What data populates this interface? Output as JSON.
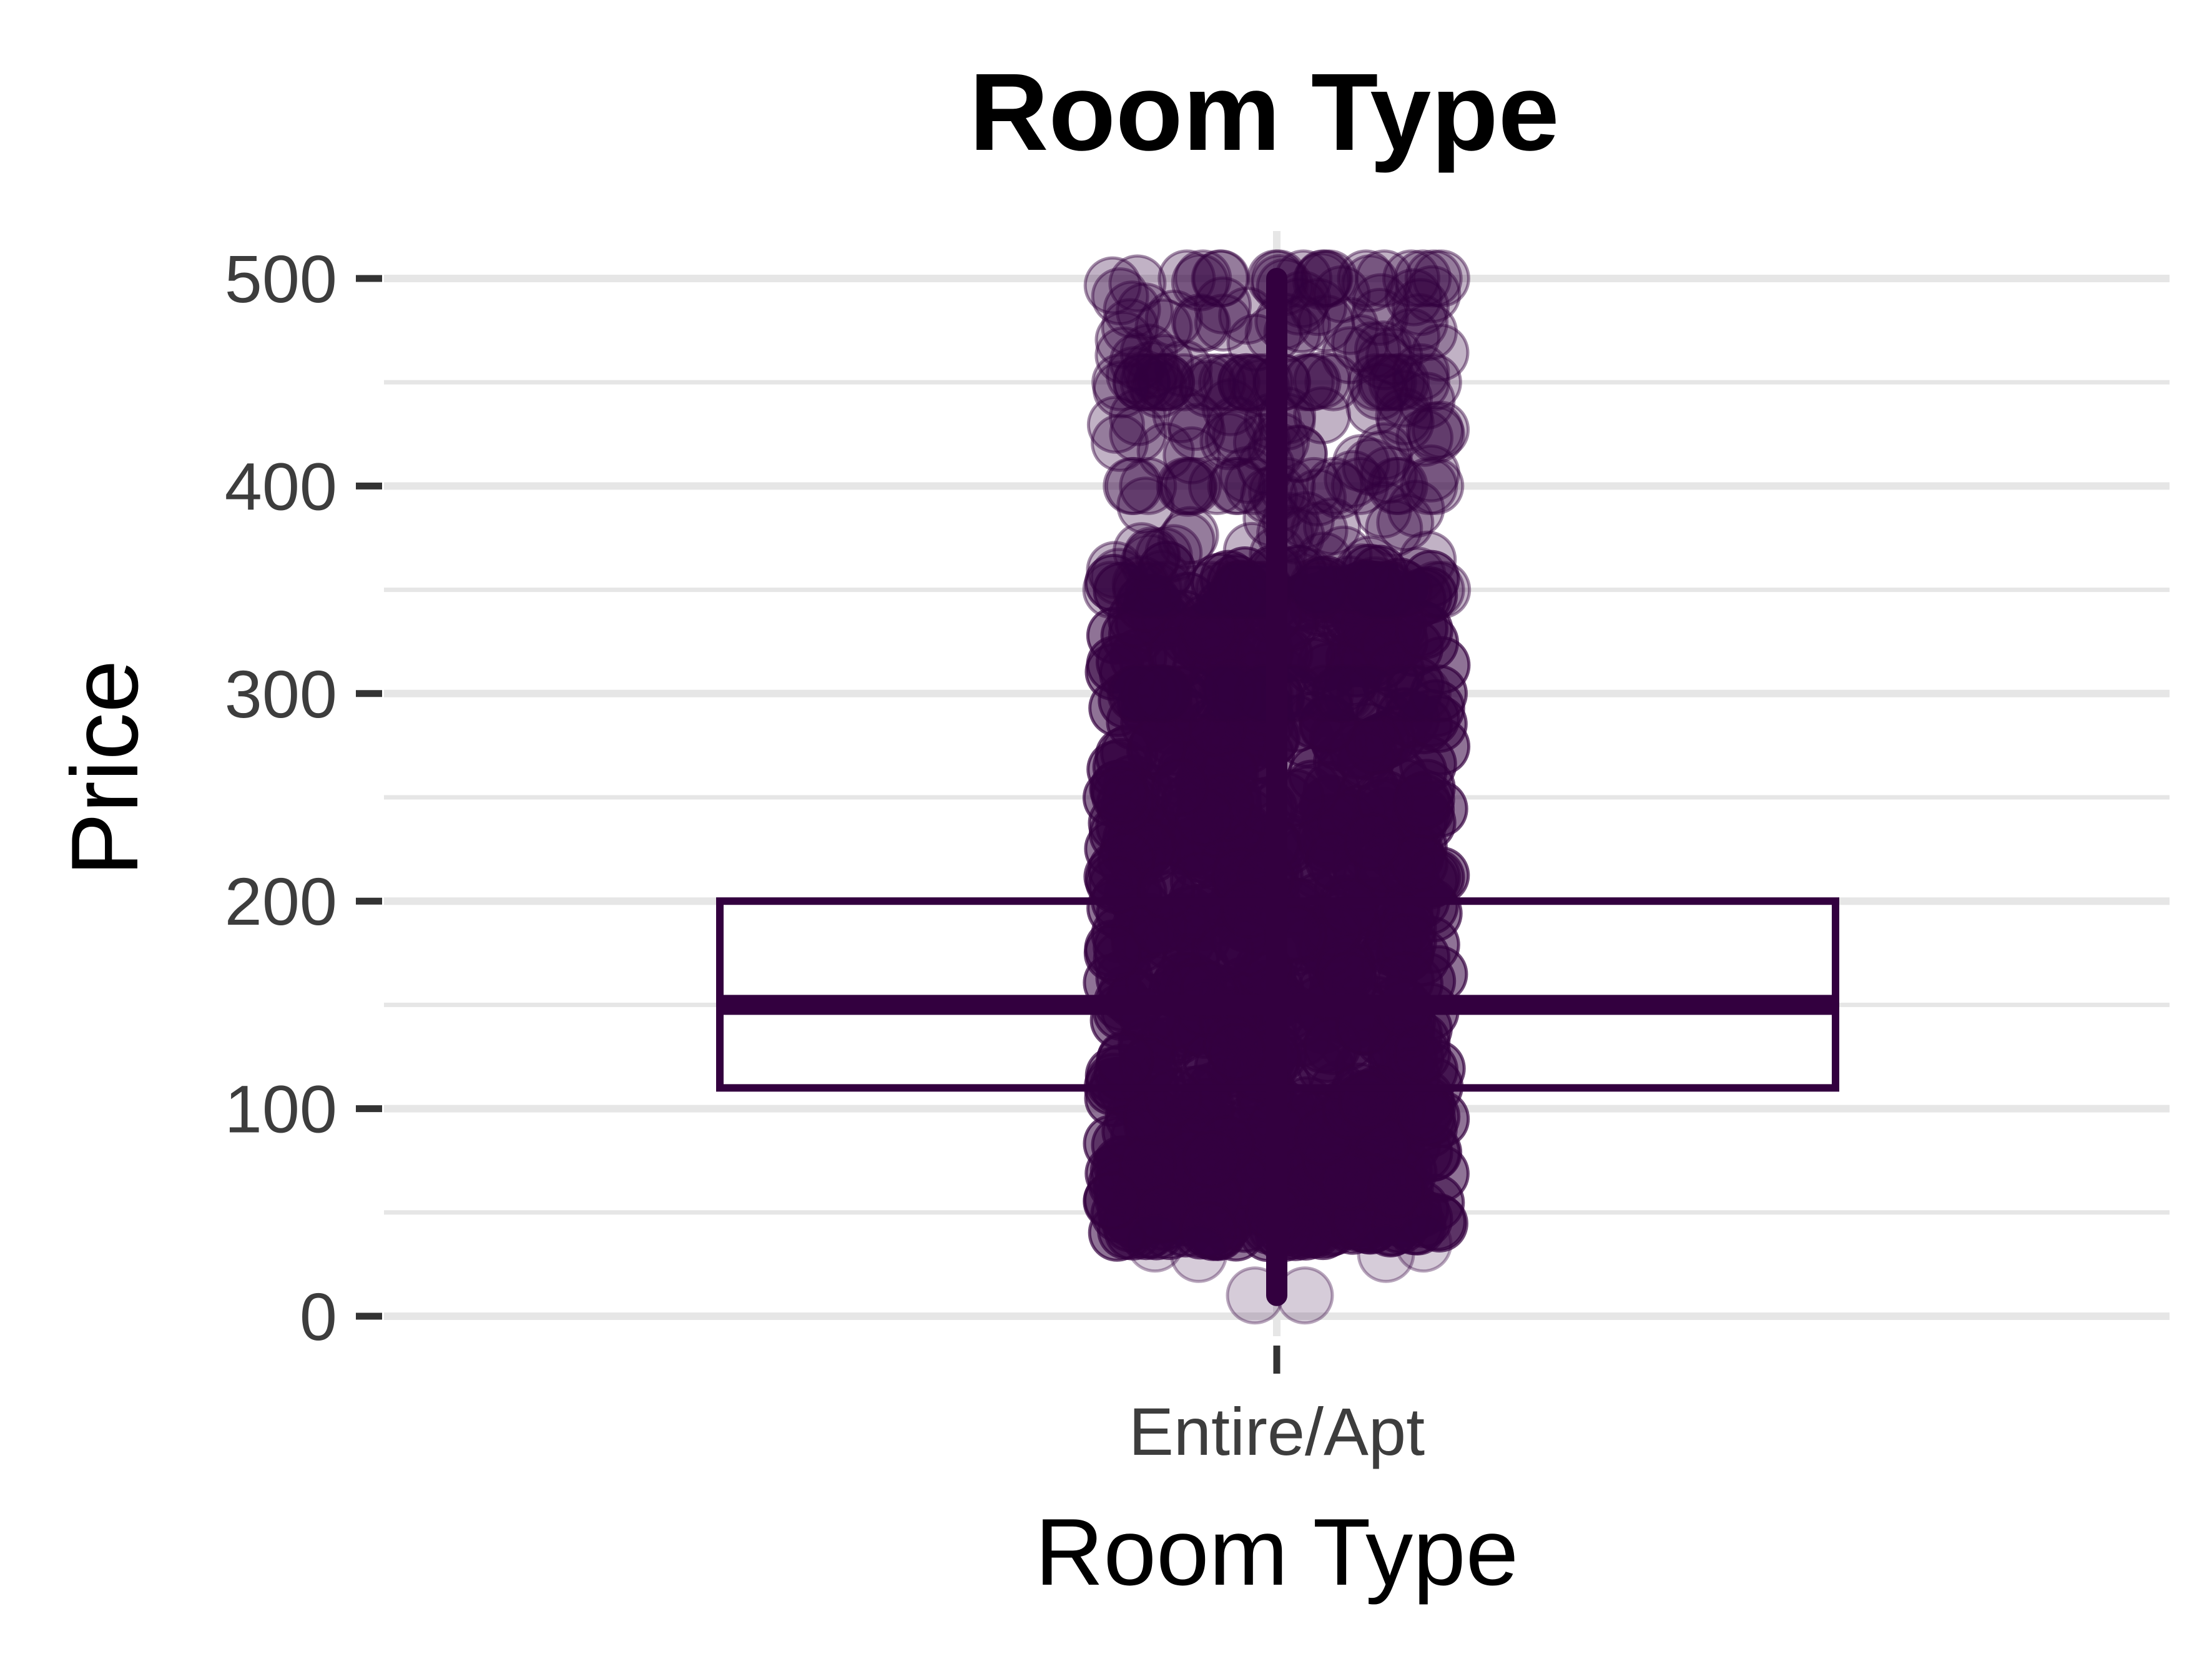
{
  "chart_data": {
    "type": "box",
    "title": "Room Type",
    "xlabel": "Room Type",
    "ylabel": "Price",
    "categories": [
      "Entire/Apt"
    ],
    "ylim": [
      0,
      500
    ],
    "yticks": [
      {
        "value": 0,
        "label": "0"
      },
      {
        "value": 100,
        "label": "100"
      },
      {
        "value": 200,
        "label": "200"
      },
      {
        "value": 300,
        "label": "300"
      },
      {
        "value": 400,
        "label": "400"
      },
      {
        "value": 500,
        "label": "500"
      }
    ],
    "minor_grid": [
      50,
      150,
      250,
      350,
      450
    ],
    "grid": true,
    "legend": "none",
    "box": {
      "category": "Entire/Apt",
      "whisker_low": 10,
      "q1": 110,
      "median": 150,
      "q3": 200,
      "whisker_high": 500
    },
    "jitter_points": {
      "note_range": "points span approximately 10 to 500, densest between 40 and 350",
      "min": 10,
      "max": 500
    },
    "colors": {
      "series": "#33003f",
      "point_fill": "#33003f",
      "grid": "#e6e6e6",
      "tick_text": "#3d3d3d"
    }
  }
}
